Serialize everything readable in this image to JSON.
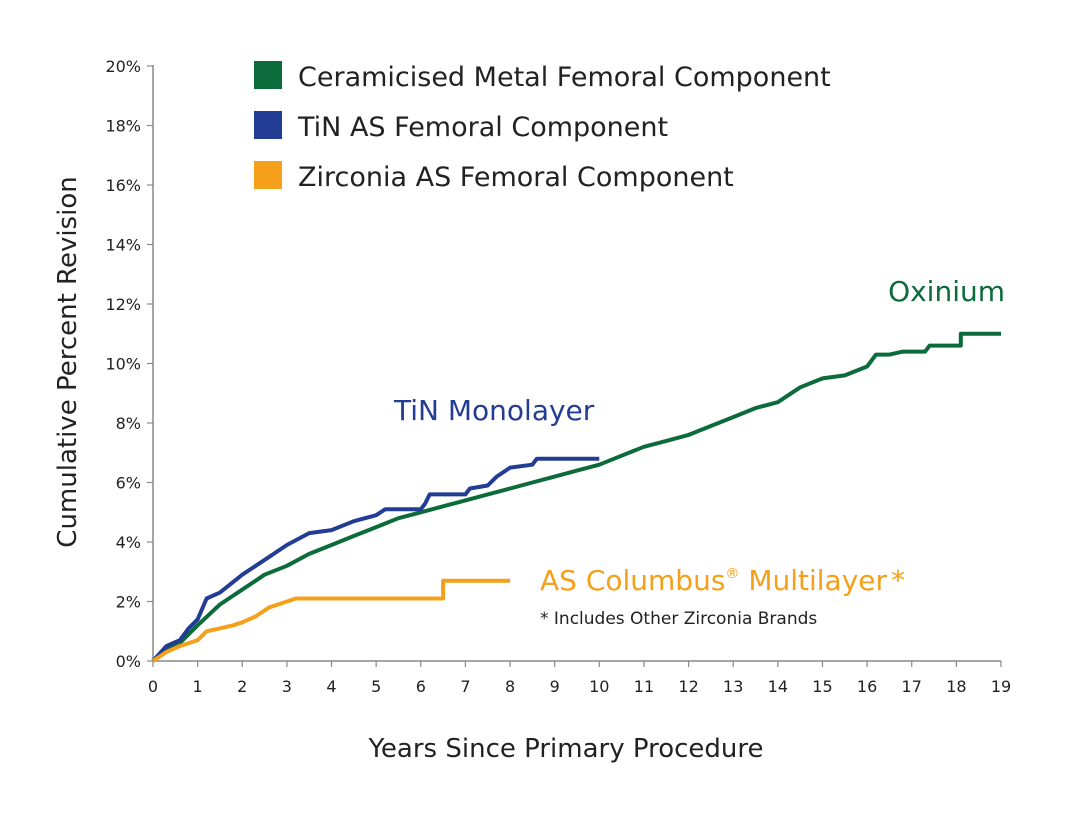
{
  "chart_data": {
    "type": "line",
    "title": "",
    "xlabel": "Years Since Primary Procedure",
    "ylabel": "Cumulative Percent Revision",
    "xlim": [
      0,
      19
    ],
    "ylim": [
      0,
      20
    ],
    "x_ticks": [
      "0",
      "1",
      "2",
      "3",
      "4",
      "5",
      "6",
      "7",
      "8",
      "9",
      "10",
      "11",
      "12",
      "13",
      "14",
      "15",
      "16",
      "17",
      "18",
      "19"
    ],
    "y_ticks": [
      "0%",
      "2%",
      "4%",
      "6%",
      "8%",
      "10%",
      "12%",
      "14%",
      "16%",
      "18%",
      "20%"
    ],
    "grid": false,
    "legend_position": "top",
    "series": [
      {
        "name": "Ceramicised Metal Femoral Component",
        "color": "#0c6b3a",
        "points": [
          [
            0,
            0
          ],
          [
            0.3,
            0.4
          ],
          [
            0.6,
            0.6
          ],
          [
            1,
            1.2
          ],
          [
            1.5,
            1.9
          ],
          [
            2,
            2.4
          ],
          [
            2.5,
            2.9
          ],
          [
            3,
            3.2
          ],
          [
            3.5,
            3.6
          ],
          [
            4,
            3.9
          ],
          [
            4.5,
            4.2
          ],
          [
            5,
            4.5
          ],
          [
            5.5,
            4.8
          ],
          [
            6,
            5.0
          ],
          [
            6.5,
            5.2
          ],
          [
            7,
            5.4
          ],
          [
            7.5,
            5.6
          ],
          [
            8,
            5.8
          ],
          [
            8.5,
            6.0
          ],
          [
            9,
            6.2
          ],
          [
            9.5,
            6.4
          ],
          [
            10,
            6.6
          ],
          [
            10.5,
            6.9
          ],
          [
            11,
            7.2
          ],
          [
            11.5,
            7.4
          ],
          [
            12,
            7.6
          ],
          [
            12.5,
            7.9
          ],
          [
            13,
            8.2
          ],
          [
            13.5,
            8.5
          ],
          [
            14,
            8.7
          ],
          [
            14.5,
            9.2
          ],
          [
            15,
            9.5
          ],
          [
            15.5,
            9.6
          ],
          [
            16,
            9.9
          ],
          [
            16.2,
            10.3
          ],
          [
            16.5,
            10.3
          ],
          [
            16.8,
            10.4
          ],
          [
            17.3,
            10.4
          ],
          [
            17.4,
            10.6
          ],
          [
            18.1,
            10.6
          ],
          [
            18.1,
            11.0
          ],
          [
            19,
            11.0
          ]
        ]
      },
      {
        "name": "TiN AS Femoral Component",
        "color": "#233c94",
        "points": [
          [
            0,
            0
          ],
          [
            0.3,
            0.5
          ],
          [
            0.6,
            0.7
          ],
          [
            0.8,
            1.1
          ],
          [
            1,
            1.4
          ],
          [
            1.2,
            2.1
          ],
          [
            1.5,
            2.3
          ],
          [
            2,
            2.9
          ],
          [
            2.5,
            3.4
          ],
          [
            3,
            3.9
          ],
          [
            3.5,
            4.3
          ],
          [
            4,
            4.4
          ],
          [
            4.5,
            4.7
          ],
          [
            5,
            4.9
          ],
          [
            5.2,
            5.1
          ],
          [
            6,
            5.1
          ],
          [
            6.1,
            5.3
          ],
          [
            6.2,
            5.6
          ],
          [
            7,
            5.6
          ],
          [
            7.1,
            5.8
          ],
          [
            7.5,
            5.9
          ],
          [
            7.7,
            6.2
          ],
          [
            8,
            6.5
          ],
          [
            8.5,
            6.6
          ],
          [
            8.6,
            6.8
          ],
          [
            10,
            6.8
          ]
        ]
      },
      {
        "name": "Zirconia AS Femoral Component",
        "color": "#f5a01a",
        "points": [
          [
            0,
            0
          ],
          [
            0.3,
            0.3
          ],
          [
            0.6,
            0.5
          ],
          [
            1,
            0.7
          ],
          [
            1.2,
            1.0
          ],
          [
            1.8,
            1.2
          ],
          [
            2,
            1.3
          ],
          [
            2.3,
            1.5
          ],
          [
            2.6,
            1.8
          ],
          [
            3,
            2.0
          ],
          [
            3.2,
            2.1
          ],
          [
            6.5,
            2.1
          ],
          [
            6.5,
            2.7
          ],
          [
            8,
            2.7
          ]
        ]
      }
    ],
    "annotations": {
      "oxinium": "Oxinium",
      "tin_monolayer": "TiN Monolayer",
      "as_columbus": "AS Columbus",
      "registered": "®",
      "multilayer": " Multilayer",
      "asterisk": "*",
      "footnote": "* Includes Other Zirconia Brands"
    }
  }
}
